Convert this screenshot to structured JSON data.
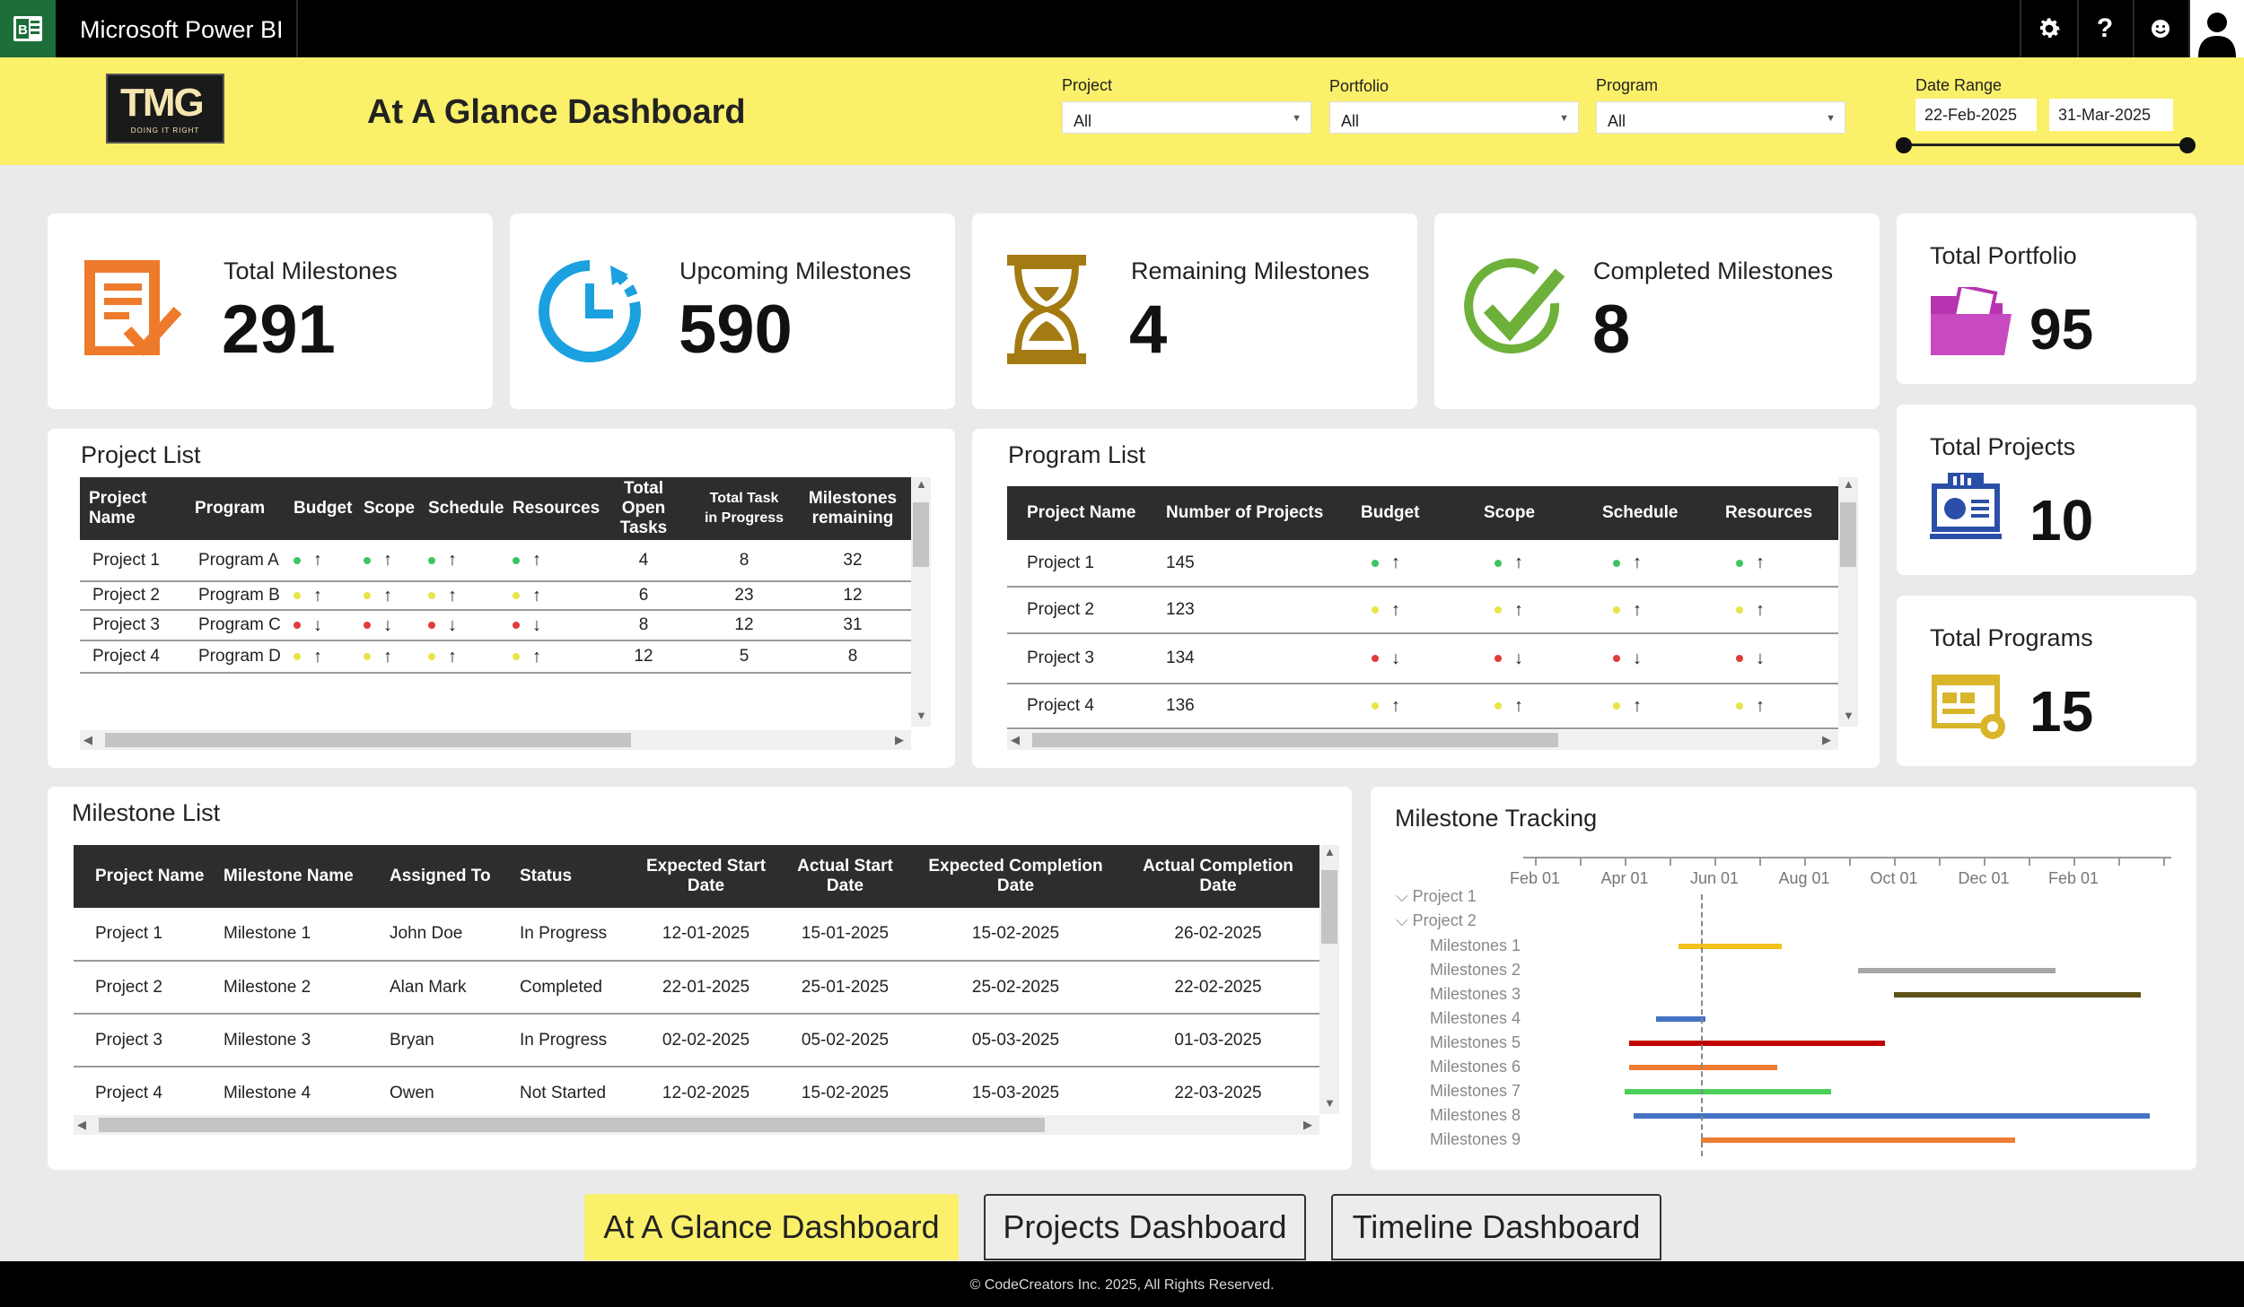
{
  "app": {
    "title": "Microsoft Power BI",
    "icons": [
      "settings-icon",
      "help-icon",
      "feedback-icon",
      "user-icon"
    ]
  },
  "header": {
    "logo_text": "TMG",
    "logo_tagline": "DOING IT RIGHT",
    "title": "At A Glance Dashboard",
    "filters": [
      {
        "label": "Project",
        "value": "All"
      },
      {
        "label": "Portfolio",
        "value": "All"
      },
      {
        "label": "Program",
        "value": "All"
      }
    ],
    "date_range": {
      "label": "Date Range",
      "start": "22-Feb-2025",
      "end": "31-Mar-2025"
    }
  },
  "kpis": [
    {
      "label": "Total Milestones",
      "value": "291",
      "icon": "document-check-icon",
      "color": "#ee7a2b"
    },
    {
      "label": "Upcoming Milestones",
      "value": "590",
      "icon": "clock-icon",
      "color": "#1ba1df"
    },
    {
      "label": "Remaining Milestones",
      "value": "4",
      "icon": "hourglass-icon",
      "color": "#a47b12"
    },
    {
      "label": "Completed Milestones",
      "value": "8",
      "icon": "checkmark-circle-icon",
      "color": "#6eb13a"
    }
  ],
  "side_kpis": [
    {
      "label": "Total Portfolio",
      "value": "95",
      "icon": "folder-icon",
      "color": "#b733b0"
    },
    {
      "label": "Total Projects",
      "value": "10",
      "icon": "monitor-chart-icon",
      "color": "#2b4fa8"
    },
    {
      "label": "Total Programs",
      "value": "15",
      "icon": "gear-window-icon",
      "color": "#d9b52a"
    }
  ],
  "project_list": {
    "title": "Project List",
    "headers": [
      "Project Name",
      "Program",
      "Budget",
      "Scope",
      "Schedule",
      "Resources",
      "Total Open Tasks",
      "Total Task in Progress",
      "Milestones remaining"
    ],
    "rows": [
      {
        "name": "Project 1",
        "program": "Program A",
        "budget": "g",
        "budget_arrow": "↑",
        "scope": "g",
        "scope_arrow": "↑",
        "schedule": "g",
        "schedule_arrow": "↑",
        "resources": "g",
        "resources_arrow": "↑",
        "open": "4",
        "progress": "8",
        "remaining": "32"
      },
      {
        "name": "Project 2",
        "program": "Program B",
        "budget": "y",
        "budget_arrow": "↑",
        "scope": "y",
        "scope_arrow": "↑",
        "schedule": "y",
        "schedule_arrow": "↑",
        "resources": "y",
        "resources_arrow": "↑",
        "open": "6",
        "progress": "23",
        "remaining": "12"
      },
      {
        "name": "Project 3",
        "program": "Program C",
        "budget": "r",
        "budget_arrow": "↓",
        "scope": "r",
        "scope_arrow": "↓",
        "schedule": "r",
        "schedule_arrow": "↓",
        "resources": "r",
        "resources_arrow": "↓",
        "open": "8",
        "progress": "12",
        "remaining": "31"
      },
      {
        "name": "Project 4",
        "program": "Program D",
        "budget": "y",
        "budget_arrow": "↑",
        "scope": "y",
        "scope_arrow": "↑",
        "schedule": "y",
        "schedule_arrow": "↑",
        "resources": "y",
        "resources_arrow": "↑",
        "open": "12",
        "progress": "5",
        "remaining": "8"
      }
    ]
  },
  "program_list": {
    "title": "Program List",
    "headers": [
      "Project Name",
      "Number of Projects",
      "Budget",
      "Scope",
      "Schedule",
      "Resources"
    ],
    "rows": [
      {
        "name": "Project 1",
        "count": "145",
        "budget": "g",
        "budget_arrow": "↑",
        "scope": "g",
        "scope_arrow": "↑",
        "schedule": "g",
        "schedule_arrow": "↑",
        "resources": "g",
        "resources_arrow": "↑"
      },
      {
        "name": "Project 2",
        "count": "123",
        "budget": "y",
        "budget_arrow": "↑",
        "scope": "y",
        "scope_arrow": "↑",
        "schedule": "y",
        "schedule_arrow": "↑",
        "resources": "y",
        "resources_arrow": "↑"
      },
      {
        "name": "Project 3",
        "count": "134",
        "budget": "r",
        "budget_arrow": "↓",
        "scope": "r",
        "scope_arrow": "↓",
        "schedule": "r",
        "schedule_arrow": "↓",
        "resources": "r",
        "resources_arrow": "↓"
      },
      {
        "name": "Project 4",
        "count": "136",
        "budget": "y",
        "budget_arrow": "↑",
        "scope": "y",
        "scope_arrow": "↑",
        "schedule": "y",
        "schedule_arrow": "↑",
        "resources": "y",
        "resources_arrow": "↑"
      }
    ]
  },
  "milestone_list": {
    "title": "Milestone List",
    "headers": [
      "Project Name",
      "Milestone Name",
      "Assigned To",
      "Status",
      "Expected Start Date",
      "Actual Start Date",
      "Expected Completion Date",
      "Actual Completion Date"
    ],
    "rows": [
      {
        "project": "Project 1",
        "milestone": "Milestone 1",
        "assigned": "John Doe",
        "status": "In Progress",
        "exp_start": "12-01-2025",
        "act_start": "15-01-2025",
        "exp_end": "15-02-2025",
        "act_end": "26-02-2025"
      },
      {
        "project": "Project 2",
        "milestone": "Milestone 2",
        "assigned": "Alan Mark",
        "status": "Completed",
        "exp_start": "22-01-2025",
        "act_start": "25-01-2025",
        "exp_end": "25-02-2025",
        "act_end": "22-02-2025"
      },
      {
        "project": "Project 3",
        "milestone": "Milestone 3",
        "assigned": "Bryan",
        "status": "In Progress",
        "exp_start": "02-02-2025",
        "act_start": "05-02-2025",
        "exp_end": "05-03-2025",
        "act_end": "01-03-2025"
      },
      {
        "project": "Project 4",
        "milestone": "Milestone 4",
        "assigned": "Owen",
        "status": "Not Started",
        "exp_start": "12-02-2025",
        "act_start": "15-02-2025",
        "exp_end": "15-03-2025",
        "act_end": "22-03-2025"
      }
    ]
  },
  "milestone_tracking": {
    "title": "Milestone Tracking",
    "axis_ticks": [
      "Feb 01",
      "Apr 01",
      "Jun 01",
      "Aug 01",
      "Oct 01",
      "Dec 01",
      "Feb 01"
    ],
    "groups": [
      "Project 1",
      "Project 2"
    ],
    "items": [
      {
        "label": "Milestones 1",
        "start": 3.2,
        "end": 5.5,
        "color": "#f2c21b"
      },
      {
        "label": "Milestones 2",
        "start": 7.2,
        "end": 11.6,
        "color": "#a6a6a6"
      },
      {
        "label": "Milestones 3",
        "start": 8.0,
        "end": 13.5,
        "color": "#5e5218"
      },
      {
        "label": "Milestones 4",
        "start": 2.7,
        "end": 3.8,
        "color": "#4472c4"
      },
      {
        "label": "Milestones 5",
        "start": 2.1,
        "end": 7.8,
        "color": "#c00000"
      },
      {
        "label": "Milestones 6",
        "start": 2.1,
        "end": 5.4,
        "color": "#ed7d31"
      },
      {
        "label": "Milestones 7",
        "start": 2.0,
        "end": 6.6,
        "color": "#4ccf5a"
      },
      {
        "label": "Milestones 8",
        "start": 2.2,
        "end": 13.7,
        "color": "#4472c4"
      },
      {
        "label": "Milestones 9",
        "start": 3.7,
        "end": 10.7,
        "color": "#ed7d31"
      }
    ],
    "today": 3.7
  },
  "nav": {
    "buttons": [
      "At A Glance Dashboard",
      "Projects Dashboard",
      "Timeline Dashboard"
    ],
    "active": 0
  },
  "footer": "© CodeCreators Inc. 2025, All Rights Reserved."
}
